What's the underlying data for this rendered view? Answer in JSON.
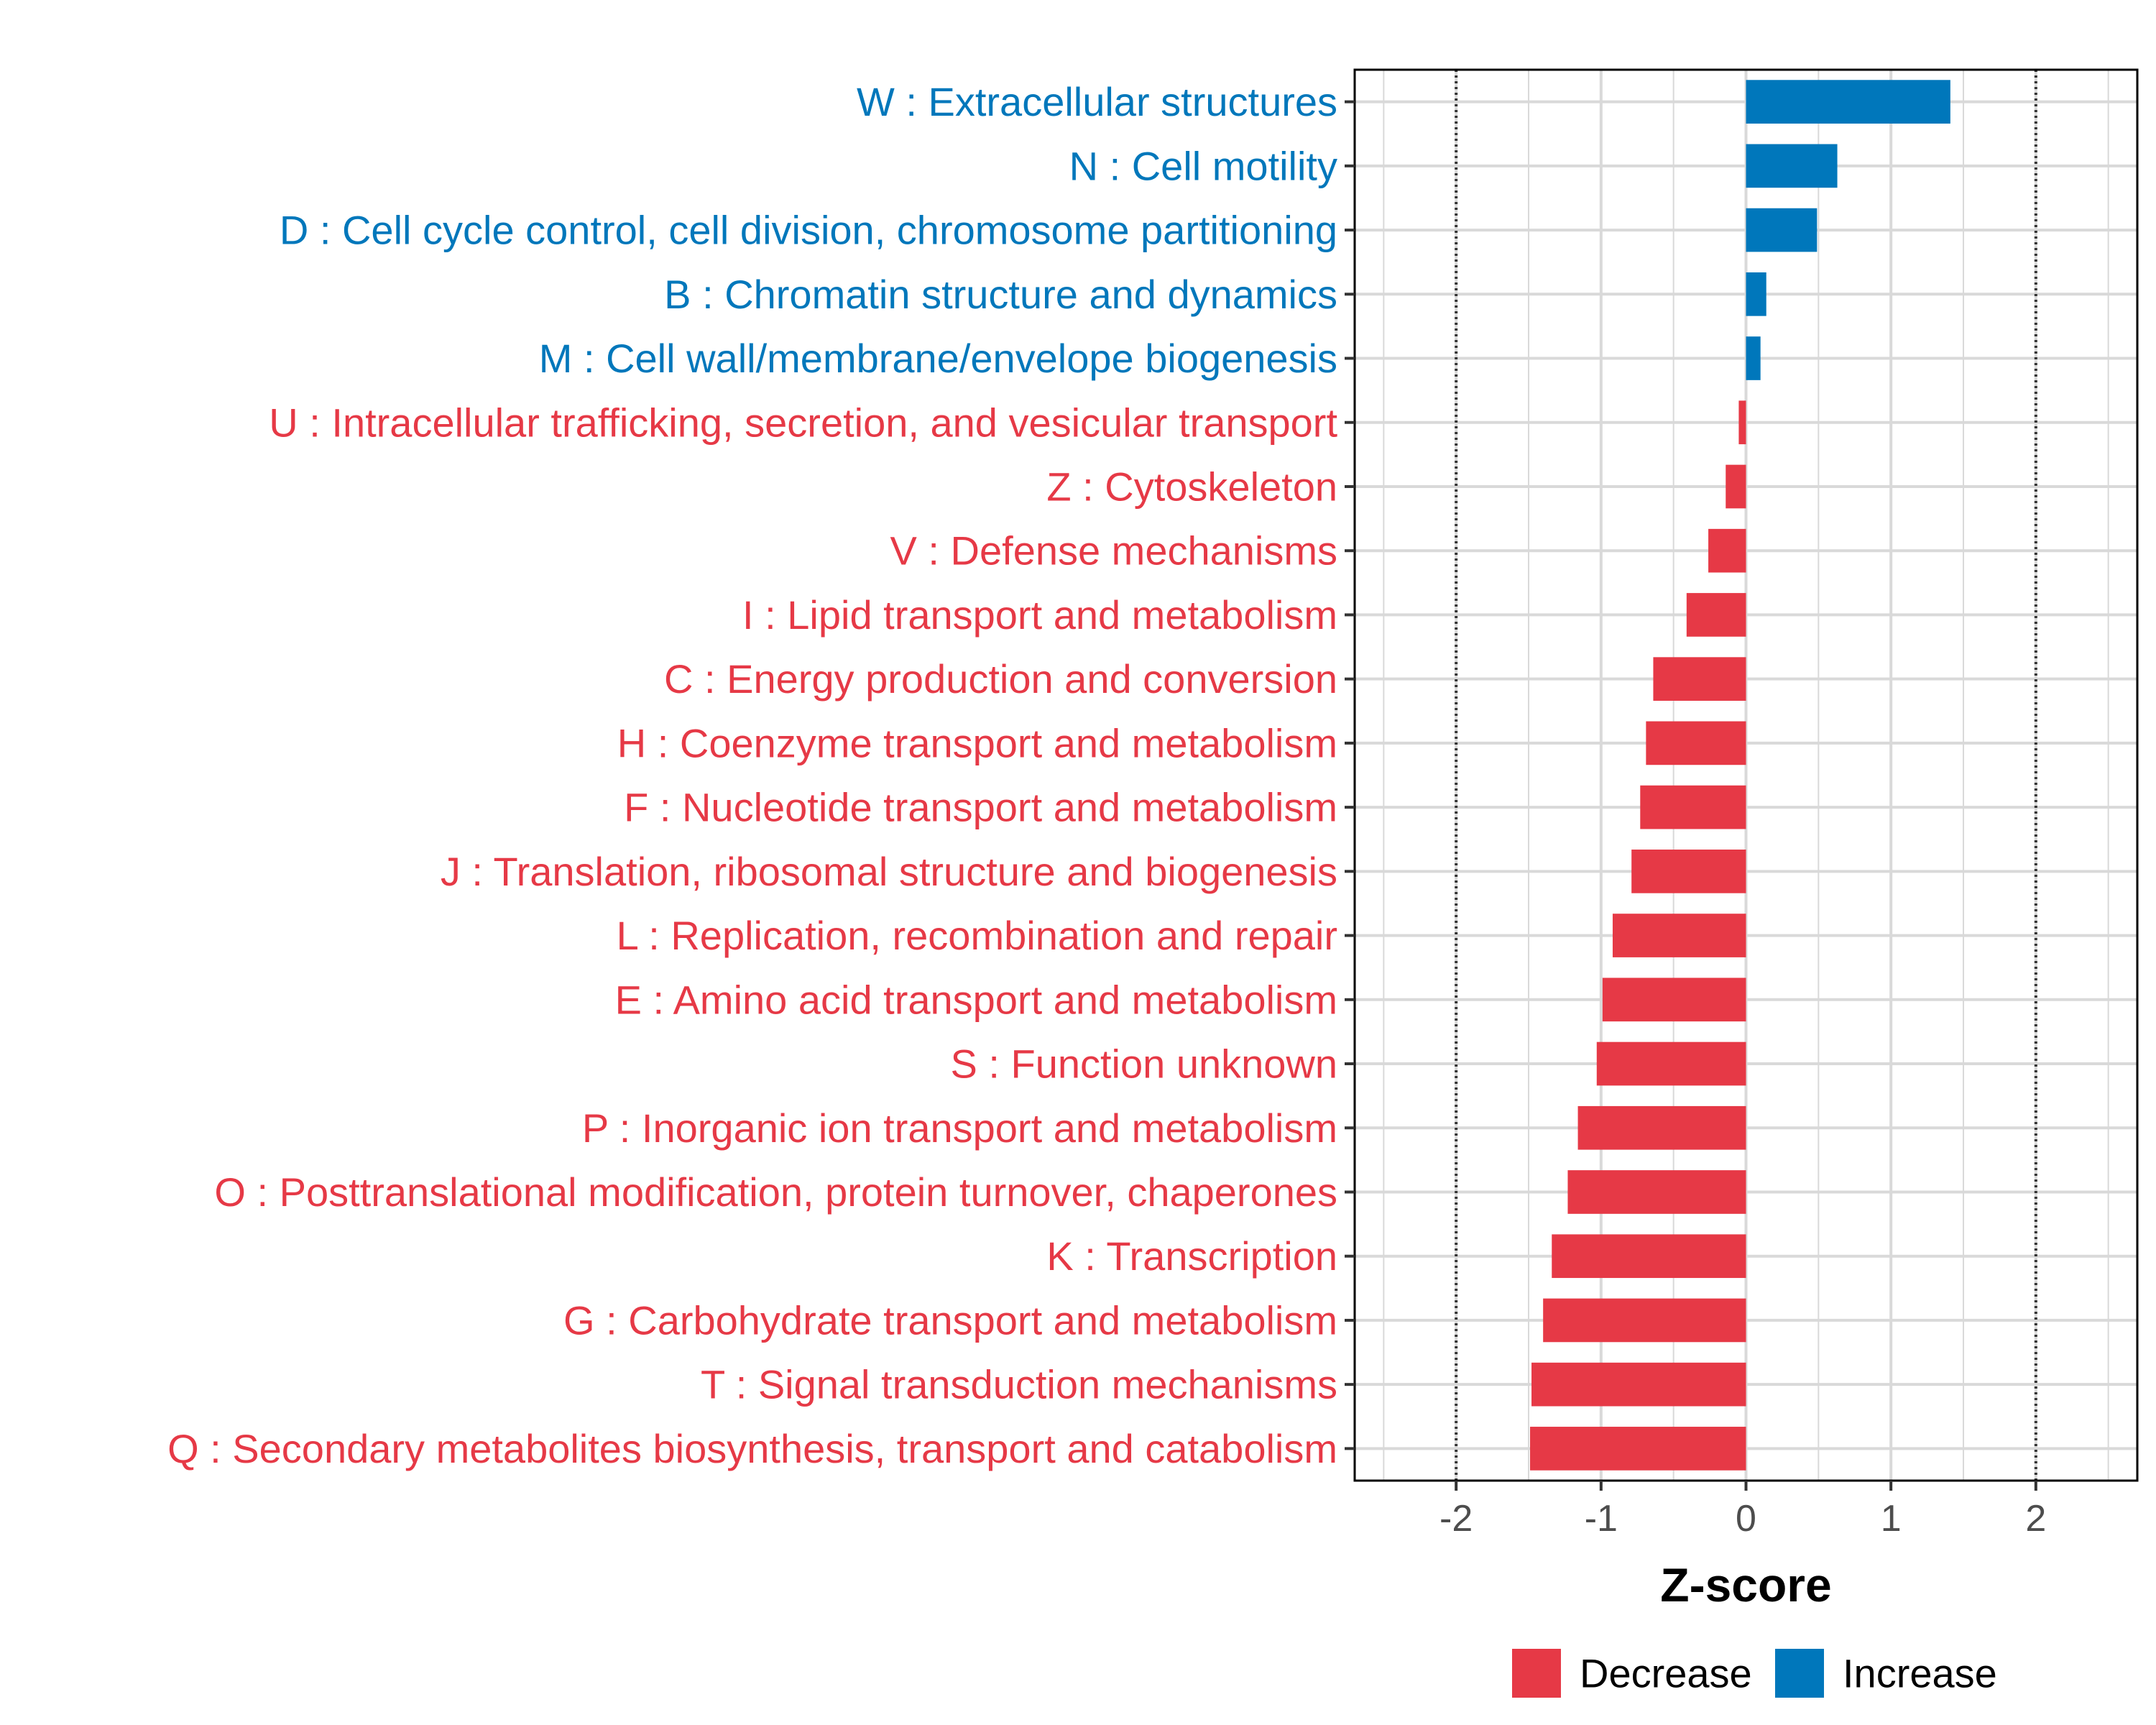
{
  "chart_data": {
    "type": "bar",
    "orientation": "horizontal",
    "xlabel": "Z-score",
    "xlim": [
      -2.7,
      2.7
    ],
    "x_ticks": [
      -2,
      -1,
      0,
      1,
      2
    ],
    "x_tick_labels": [
      "-2",
      "-1",
      "0",
      "1",
      "2"
    ],
    "reference_lines": [
      -2,
      2
    ],
    "colors": {
      "Decrease": "#E63946",
      "Increase": "#0077BB"
    },
    "legend": {
      "position": "bottom",
      "entries": [
        {
          "label": "Decrease",
          "color": "#E63946"
        },
        {
          "label": "Increase",
          "color": "#0077BB"
        }
      ]
    },
    "categories": [
      "W : Extracellular structures",
      "N : Cell motility",
      "D : Cell cycle control, cell division, chromosome partitioning",
      "B : Chromatin structure and dynamics",
      "M : Cell wall/membrane/envelope biogenesis",
      "U : Intracellular trafficking, secretion, and vesicular transport",
      "Z : Cytoskeleton",
      "V : Defense mechanisms",
      "I : Lipid transport and metabolism",
      "C : Energy production and conversion",
      "H : Coenzyme transport and metabolism",
      "F : Nucleotide transport and metabolism",
      "J : Translation, ribosomal structure and biogenesis",
      "L : Replication, recombination and repair",
      "E : Amino acid transport and metabolism",
      "S : Function unknown",
      "P : Inorganic ion transport and metabolism",
      "O : Posttranslational modification, protein turnover, chaperones",
      "K : Transcription",
      "G : Carbohydrate transport and metabolism",
      "T : Signal transduction mechanisms",
      "Q : Secondary metabolites biosynthesis, transport and catabolism"
    ],
    "values": [
      1.41,
      0.63,
      0.49,
      0.14,
      0.1,
      -0.05,
      -0.14,
      -0.26,
      -0.41,
      -0.64,
      -0.69,
      -0.73,
      -0.79,
      -0.92,
      -0.99,
      -1.03,
      -1.16,
      -1.23,
      -1.34,
      -1.4,
      -1.48,
      -1.49
    ],
    "groups": [
      "Increase",
      "Increase",
      "Increase",
      "Increase",
      "Increase",
      "Decrease",
      "Decrease",
      "Decrease",
      "Decrease",
      "Decrease",
      "Decrease",
      "Decrease",
      "Decrease",
      "Decrease",
      "Decrease",
      "Decrease",
      "Decrease",
      "Decrease",
      "Decrease",
      "Decrease",
      "Decrease",
      "Decrease"
    ]
  }
}
